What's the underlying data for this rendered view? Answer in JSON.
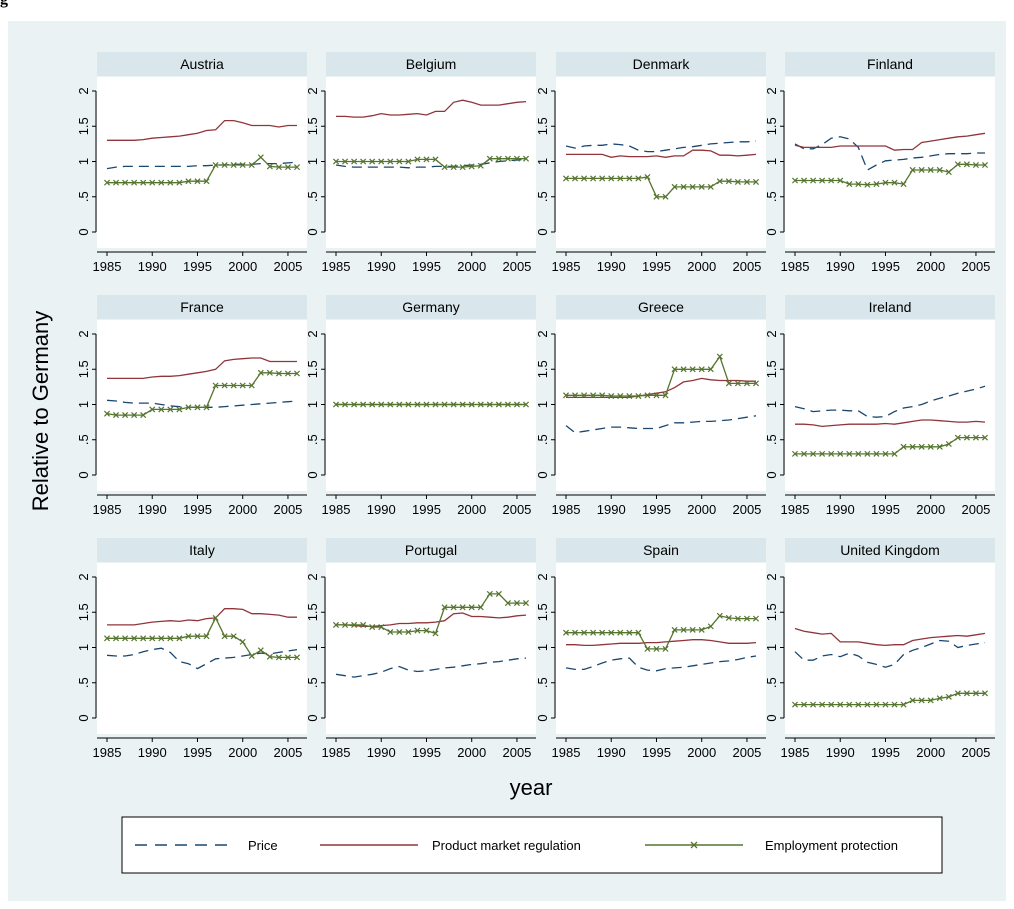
{
  "figure_title": "g",
  "colors": {
    "price": "#1a476f",
    "pmr": "#90353b",
    "epl": "#55752f",
    "background": "#eaf2f3",
    "panel_header": "#d9e6eb"
  },
  "chart_data": {
    "type": "line",
    "xlabel": "year",
    "ylabel": "Relative to Germany",
    "x": [
      1985,
      1986,
      1987,
      1988,
      1989,
      1990,
      1991,
      1992,
      1993,
      1994,
      1995,
      1996,
      1997,
      1998,
      1999,
      2000,
      2001,
      2002,
      2003,
      2004,
      2005,
      2006
    ],
    "xticks": [
      1985,
      1990,
      1995,
      2000,
      2005
    ],
    "yticks": [
      0,
      0.5,
      1,
      1.5,
      2
    ],
    "ytick_labels": [
      "0",
      ".5",
      "1",
      "1.5",
      "2"
    ],
    "ylim": [
      0,
      2
    ],
    "legend": {
      "position": "bottom",
      "entries": [
        "Price",
        "Product market regulation",
        "Employment protection"
      ]
    },
    "panels": [
      {
        "name": "Austria",
        "price": [
          0.9,
          0.92,
          0.93,
          0.93,
          0.93,
          0.93,
          0.93,
          0.93,
          0.93,
          0.93,
          0.94,
          0.94,
          0.95,
          0.95,
          0.96,
          0.96,
          0.96,
          0.97,
          0.97,
          0.97,
          0.98,
          0.99
        ],
        "pmr": [
          1.3,
          1.3,
          1.3,
          1.3,
          1.31,
          1.33,
          1.34,
          1.35,
          1.36,
          1.38,
          1.4,
          1.44,
          1.45,
          1.58,
          1.58,
          1.55,
          1.51,
          1.51,
          1.51,
          1.49,
          1.51,
          1.51
        ],
        "epl": [
          0.7,
          0.7,
          0.7,
          0.7,
          0.7,
          0.7,
          0.7,
          0.7,
          0.7,
          0.72,
          0.72,
          0.72,
          0.95,
          0.95,
          0.95,
          0.95,
          0.95,
          1.06,
          0.93,
          0.92,
          0.92,
          0.92
        ]
      },
      {
        "name": "Belgium",
        "price": [
          0.95,
          0.93,
          0.92,
          0.92,
          0.92,
          0.92,
          0.92,
          0.92,
          0.91,
          0.92,
          0.92,
          0.93,
          0.93,
          0.93,
          0.94,
          0.95,
          0.96,
          0.98,
          1.0,
          1.01,
          1.02,
          1.03
        ],
        "pmr": [
          1.64,
          1.64,
          1.63,
          1.63,
          1.65,
          1.68,
          1.66,
          1.66,
          1.67,
          1.68,
          1.66,
          1.71,
          1.71,
          1.84,
          1.87,
          1.84,
          1.8,
          1.8,
          1.8,
          1.82,
          1.84,
          1.85
        ],
        "epl": [
          1.0,
          1.0,
          1.0,
          1.0,
          1.0,
          1.0,
          1.0,
          1.0,
          1.0,
          1.03,
          1.03,
          1.03,
          0.92,
          0.92,
          0.92,
          0.93,
          0.94,
          1.04,
          1.04,
          1.04,
          1.04,
          1.04
        ]
      },
      {
        "name": "Denmark",
        "price": [
          1.22,
          1.19,
          1.22,
          1.23,
          1.23,
          1.25,
          1.24,
          1.22,
          1.16,
          1.14,
          1.14,
          1.16,
          1.18,
          1.2,
          1.21,
          1.23,
          1.25,
          1.26,
          1.27,
          1.28,
          1.28,
          1.29
        ],
        "pmr": [
          1.1,
          1.1,
          1.1,
          1.1,
          1.1,
          1.06,
          1.08,
          1.07,
          1.07,
          1.07,
          1.08,
          1.06,
          1.08,
          1.08,
          1.16,
          1.16,
          1.15,
          1.09,
          1.09,
          1.08,
          1.09,
          1.1
        ],
        "epl": [
          0.76,
          0.76,
          0.76,
          0.76,
          0.76,
          0.76,
          0.76,
          0.76,
          0.76,
          0.78,
          0.5,
          0.5,
          0.64,
          0.64,
          0.64,
          0.64,
          0.64,
          0.72,
          0.72,
          0.71,
          0.71,
          0.71
        ]
      },
      {
        "name": "Finland",
        "price": [
          1.25,
          1.18,
          1.18,
          1.24,
          1.33,
          1.35,
          1.32,
          1.2,
          0.88,
          0.95,
          1.01,
          1.02,
          1.03,
          1.05,
          1.06,
          1.08,
          1.1,
          1.11,
          1.11,
          1.11,
          1.12,
          1.12
        ],
        "pmr": [
          1.23,
          1.2,
          1.2,
          1.2,
          1.2,
          1.22,
          1.22,
          1.22,
          1.22,
          1.22,
          1.22,
          1.16,
          1.17,
          1.17,
          1.27,
          1.29,
          1.31,
          1.33,
          1.35,
          1.36,
          1.38,
          1.4
        ],
        "epl": [
          0.73,
          0.73,
          0.73,
          0.73,
          0.73,
          0.73,
          0.68,
          0.68,
          0.67,
          0.68,
          0.7,
          0.7,
          0.68,
          0.88,
          0.88,
          0.88,
          0.88,
          0.85,
          0.96,
          0.96,
          0.95,
          0.95
        ]
      },
      {
        "name": "France",
        "price": [
          1.06,
          1.05,
          1.03,
          1.02,
          1.02,
          1.02,
          1.0,
          0.98,
          0.97,
          0.96,
          0.96,
          0.96,
          0.96,
          0.97,
          0.98,
          0.99,
          1.0,
          1.01,
          1.02,
          1.03,
          1.04,
          1.05
        ],
        "pmr": [
          1.37,
          1.37,
          1.37,
          1.37,
          1.37,
          1.39,
          1.4,
          1.4,
          1.41,
          1.43,
          1.45,
          1.47,
          1.5,
          1.62,
          1.64,
          1.65,
          1.66,
          1.66,
          1.61,
          1.61,
          1.61,
          1.61
        ],
        "epl": [
          0.87,
          0.85,
          0.85,
          0.85,
          0.85,
          0.93,
          0.93,
          0.93,
          0.93,
          0.96,
          0.96,
          0.96,
          1.27,
          1.27,
          1.27,
          1.27,
          1.27,
          1.45,
          1.45,
          1.44,
          1.44,
          1.44
        ]
      },
      {
        "name": "Germany",
        "price": [
          1,
          1,
          1,
          1,
          1,
          1,
          1,
          1,
          1,
          1,
          1,
          1,
          1,
          1,
          1,
          1,
          1,
          1,
          1,
          1,
          1,
          1
        ],
        "pmr": [
          1,
          1,
          1,
          1,
          1,
          1,
          1,
          1,
          1,
          1,
          1,
          1,
          1,
          1,
          1,
          1,
          1,
          1,
          1,
          1,
          1,
          1
        ],
        "epl": [
          1,
          1,
          1,
          1,
          1,
          1,
          1,
          1,
          1,
          1,
          1,
          1,
          1,
          1,
          1,
          1,
          1,
          1,
          1,
          1,
          1,
          1
        ]
      },
      {
        "name": "Greece",
        "price": [
          0.7,
          0.6,
          0.62,
          0.64,
          0.66,
          0.68,
          0.68,
          0.67,
          0.66,
          0.66,
          0.66,
          0.7,
          0.74,
          0.74,
          0.75,
          0.76,
          0.76,
          0.77,
          0.78,
          0.8,
          0.82,
          0.84
        ],
        "pmr": [
          1.1,
          1.1,
          1.1,
          1.1,
          1.1,
          1.1,
          1.1,
          1.1,
          1.12,
          1.14,
          1.16,
          1.18,
          1.24,
          1.32,
          1.34,
          1.37,
          1.35,
          1.34,
          1.34,
          1.34,
          1.33,
          1.33
        ],
        "epl": [
          1.13,
          1.13,
          1.13,
          1.13,
          1.13,
          1.12,
          1.12,
          1.12,
          1.12,
          1.13,
          1.13,
          1.13,
          1.5,
          1.5,
          1.5,
          1.5,
          1.5,
          1.68,
          1.3,
          1.3,
          1.3,
          1.3
        ]
      },
      {
        "name": "Ireland",
        "price": [
          0.97,
          0.94,
          0.9,
          0.91,
          0.92,
          0.92,
          0.91,
          0.91,
          0.83,
          0.82,
          0.83,
          0.9,
          0.95,
          0.97,
          1.0,
          1.05,
          1.09,
          1.12,
          1.16,
          1.19,
          1.22,
          1.26
        ],
        "pmr": [
          0.72,
          0.72,
          0.71,
          0.69,
          0.7,
          0.71,
          0.72,
          0.72,
          0.72,
          0.72,
          0.73,
          0.72,
          0.74,
          0.76,
          0.78,
          0.78,
          0.77,
          0.76,
          0.75,
          0.75,
          0.76,
          0.75
        ],
        "epl": [
          0.3,
          0.3,
          0.3,
          0.3,
          0.3,
          0.3,
          0.3,
          0.3,
          0.3,
          0.3,
          0.3,
          0.3,
          0.4,
          0.4,
          0.4,
          0.4,
          0.4,
          0.44,
          0.53,
          0.53,
          0.53,
          0.53
        ]
      },
      {
        "name": "Italy",
        "price": [
          0.89,
          0.88,
          0.88,
          0.9,
          0.94,
          0.97,
          0.99,
          0.93,
          0.8,
          0.77,
          0.7,
          0.77,
          0.84,
          0.85,
          0.86,
          0.88,
          0.9,
          0.92,
          0.91,
          0.93,
          0.95,
          0.97
        ],
        "pmr": [
          1.32,
          1.32,
          1.32,
          1.32,
          1.34,
          1.36,
          1.37,
          1.38,
          1.37,
          1.39,
          1.38,
          1.41,
          1.42,
          1.55,
          1.55,
          1.54,
          1.48,
          1.48,
          1.47,
          1.46,
          1.43,
          1.43
        ],
        "epl": [
          1.13,
          1.13,
          1.13,
          1.13,
          1.13,
          1.13,
          1.13,
          1.13,
          1.13,
          1.16,
          1.16,
          1.16,
          1.42,
          1.16,
          1.16,
          1.08,
          0.88,
          0.96,
          0.87,
          0.86,
          0.86,
          0.86
        ]
      },
      {
        "name": "Portugal",
        "price": [
          0.62,
          0.6,
          0.58,
          0.6,
          0.62,
          0.65,
          0.7,
          0.73,
          0.68,
          0.66,
          0.67,
          0.69,
          0.71,
          0.72,
          0.74,
          0.76,
          0.77,
          0.79,
          0.8,
          0.82,
          0.84,
          0.85
        ],
        "pmr": [
          1.32,
          1.32,
          1.31,
          1.3,
          1.3,
          1.31,
          1.32,
          1.34,
          1.34,
          1.35,
          1.35,
          1.36,
          1.38,
          1.48,
          1.49,
          1.44,
          1.44,
          1.43,
          1.42,
          1.43,
          1.45,
          1.46
        ],
        "epl": [
          1.32,
          1.32,
          1.32,
          1.32,
          1.29,
          1.29,
          1.22,
          1.22,
          1.22,
          1.24,
          1.24,
          1.2,
          1.57,
          1.57,
          1.57,
          1.57,
          1.57,
          1.76,
          1.76,
          1.63,
          1.63,
          1.63
        ]
      },
      {
        "name": "Spain",
        "price": [
          0.71,
          0.69,
          0.69,
          0.73,
          0.78,
          0.82,
          0.84,
          0.85,
          0.72,
          0.68,
          0.67,
          0.7,
          0.71,
          0.72,
          0.74,
          0.76,
          0.78,
          0.8,
          0.81,
          0.83,
          0.86,
          0.88
        ],
        "pmr": [
          1.04,
          1.04,
          1.03,
          1.03,
          1.04,
          1.05,
          1.06,
          1.06,
          1.06,
          1.07,
          1.07,
          1.08,
          1.09,
          1.1,
          1.11,
          1.11,
          1.1,
          1.08,
          1.06,
          1.06,
          1.06,
          1.07
        ],
        "epl": [
          1.21,
          1.21,
          1.21,
          1.21,
          1.21,
          1.21,
          1.21,
          1.21,
          1.21,
          0.98,
          0.98,
          0.98,
          1.25,
          1.25,
          1.25,
          1.25,
          1.3,
          1.45,
          1.42,
          1.41,
          1.41,
          1.41
        ]
      },
      {
        "name": "United Kingdom",
        "price": [
          0.94,
          0.82,
          0.82,
          0.88,
          0.9,
          0.87,
          0.92,
          0.88,
          0.79,
          0.76,
          0.72,
          0.76,
          0.9,
          0.96,
          1.0,
          1.05,
          1.1,
          1.09,
          1.0,
          1.03,
          1.05,
          1.07
        ],
        "pmr": [
          1.27,
          1.23,
          1.21,
          1.19,
          1.2,
          1.08,
          1.08,
          1.08,
          1.06,
          1.04,
          1.03,
          1.04,
          1.04,
          1.1,
          1.12,
          1.14,
          1.15,
          1.16,
          1.17,
          1.16,
          1.18,
          1.2
        ],
        "epl": [
          0.19,
          0.19,
          0.19,
          0.19,
          0.19,
          0.19,
          0.19,
          0.19,
          0.19,
          0.19,
          0.19,
          0.19,
          0.19,
          0.25,
          0.25,
          0.25,
          0.28,
          0.3,
          0.35,
          0.35,
          0.35,
          0.35
        ]
      }
    ]
  }
}
